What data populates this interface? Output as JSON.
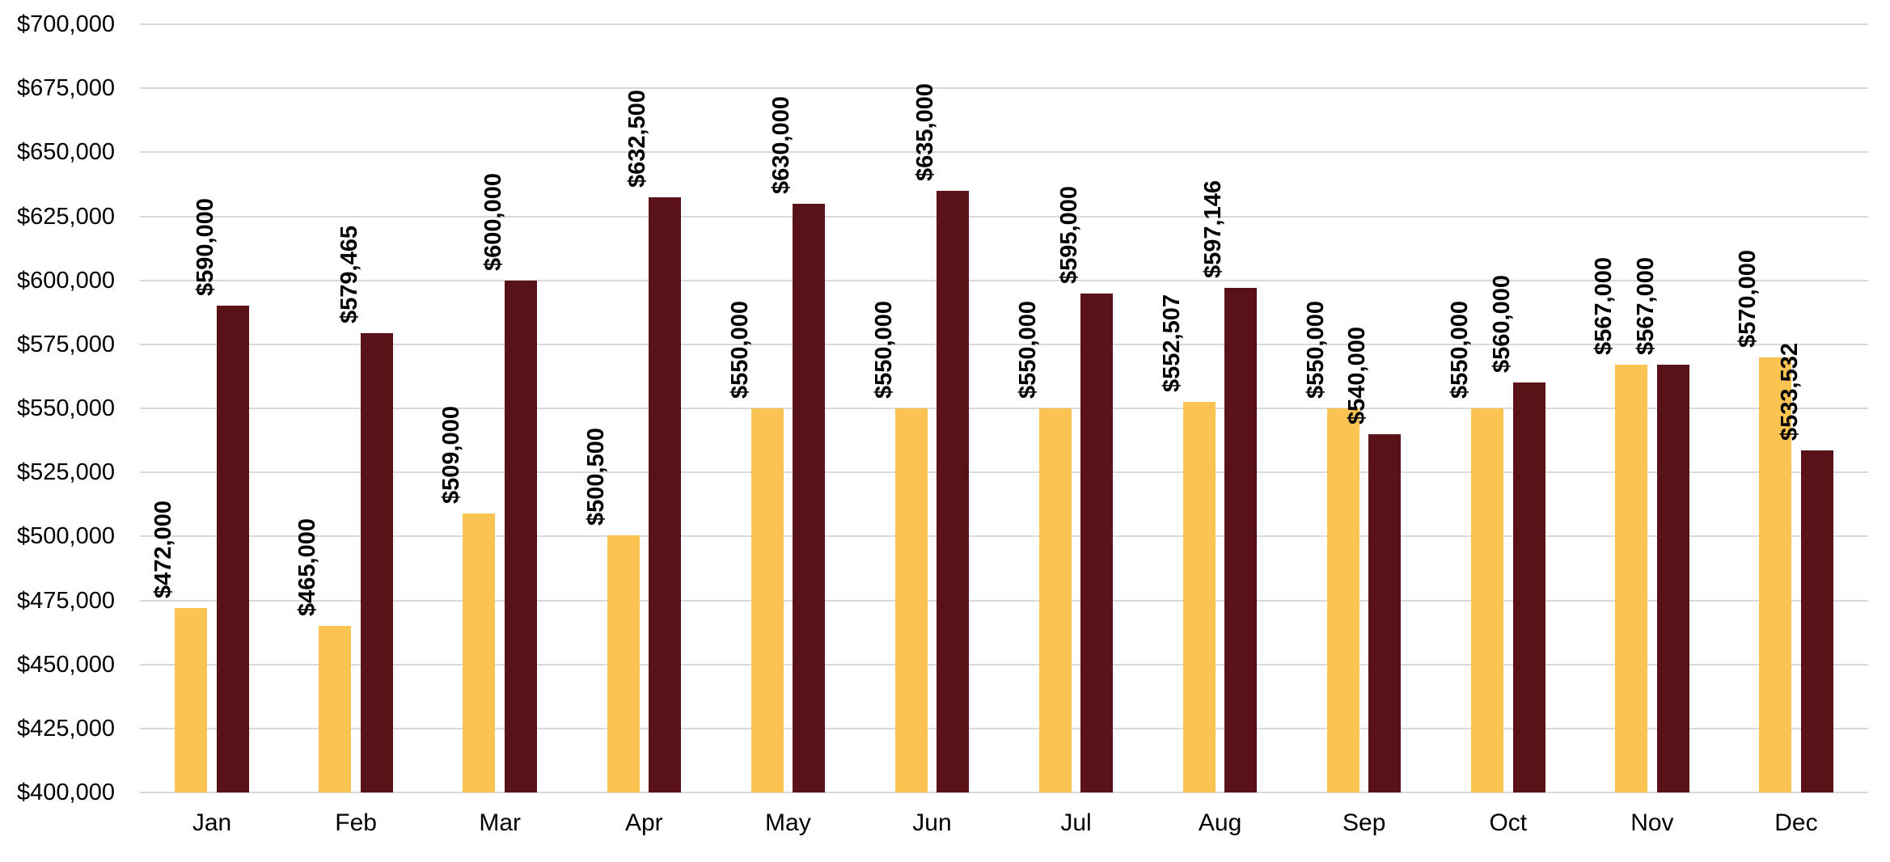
{
  "chart_data": {
    "type": "bar",
    "title": "",
    "xlabel": "",
    "ylabel": "",
    "categories": [
      "Jan",
      "Feb",
      "Mar",
      "Apr",
      "May",
      "Jun",
      "Jul",
      "Aug",
      "Sep",
      "Oct",
      "Nov",
      "Dec"
    ],
    "series": [
      {
        "name": "gold-series",
        "color": "#FBC351",
        "values": [
          472000,
          465000,
          509000,
          500500,
          550000,
          550000,
          550000,
          552507,
          550000,
          550000,
          567000,
          570000
        ],
        "labels": [
          "$472,000",
          "$465,000",
          "$509,000",
          "$500,500",
          "$550,000",
          "$550,000",
          "$550,000",
          "$552,507",
          "$550,000",
          "$550,000",
          "$567,000",
          "$570,000"
        ]
      },
      {
        "name": "maroon-series",
        "color": "#5A1219",
        "values": [
          590000,
          579465,
          600000,
          632500,
          630000,
          635000,
          595000,
          597146,
          540000,
          560000,
          567000,
          533532
        ],
        "labels": [
          "$590,000",
          "$579,465",
          "$600,000",
          "$632,500",
          "$630,000",
          "$635,000",
          "$595,000",
          "$597,146",
          "$540,000",
          "$560,000",
          "$567,000",
          "$533,532"
        ]
      }
    ],
    "y_axis": {
      "min": 400000,
      "max": 700000,
      "step": 25000,
      "tick_labels": [
        "$400,000",
        "$425,000",
        "$450,000",
        "$475,000",
        "$500,000",
        "$525,000",
        "$550,000",
        "$575,000",
        "$600,000",
        "$625,000",
        "$650,000",
        "$675,000",
        "$700,000"
      ]
    },
    "grid": true,
    "legend_position": "none",
    "gridline_color": "#D9D9D9",
    "data_label_color": "#000000",
    "data_label_rotation": -90
  }
}
